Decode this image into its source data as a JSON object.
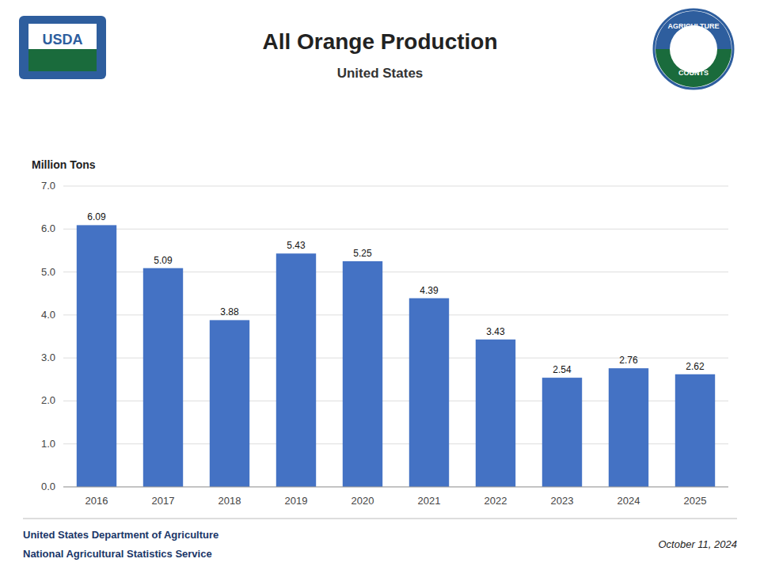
{
  "chart_data": {
    "type": "bar",
    "title": "All Orange Production",
    "subtitle": "United States",
    "y_label": "Million Tons",
    "categories": [
      "2016",
      "2017",
      "2018",
      "2019",
      "2020",
      "2021",
      "2022",
      "2023",
      "2024",
      "2025"
    ],
    "values": [
      6.09,
      5.09,
      3.88,
      5.43,
      5.25,
      4.39,
      3.43,
      2.54,
      2.76,
      2.62
    ],
    "color": "#4472C4",
    "ylim": [
      0,
      7.0
    ],
    "yticks": [
      {
        "value": 0.0,
        "label": "0.0"
      },
      {
        "value": 1.0,
        "label": "1.0"
      },
      {
        "value": 2.0,
        "label": "2.0"
      },
      {
        "value": 3.0,
        "label": "3.0"
      },
      {
        "value": 4.0,
        "label": "4.0"
      },
      {
        "value": 5.0,
        "label": "5.0"
      },
      {
        "value": 6.0,
        "label": "6.0"
      },
      {
        "value": 7.0,
        "label": "7.0"
      }
    ],
    "grid": true,
    "data_labels": true,
    "annotations": [
      "United States Department of Agriculture",
      "National Agricultural Statistics Service",
      "October 11, 2024",
      "USDA",
      "AGRICULTURE",
      "COUNTS"
    ]
  }
}
